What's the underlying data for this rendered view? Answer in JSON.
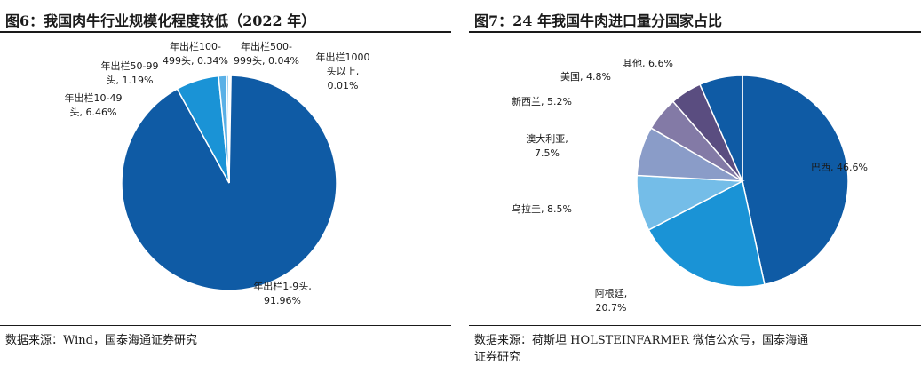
{
  "left": {
    "title": "图6：我国肉牛行业规模化程度较低（2022 年）",
    "source": "数据来源：Wind，国泰海通证券研究",
    "chart_data": {
      "type": "pie",
      "colors": [
        "#0f5ba5",
        "#1a93d6",
        "#5ab0e6",
        "#8cc8ee",
        "#c5def3"
      ],
      "slices": [
        {
          "label_lines": [
            "年出栏1-9头,",
            "91.96%"
          ],
          "value": 91.96
        },
        {
          "label_lines": [
            "年出栏10-49",
            "头, 6.46%"
          ],
          "value": 6.46
        },
        {
          "label_lines": [
            "年出栏50-99",
            "头, 1.19%"
          ],
          "value": 1.19
        },
        {
          "label_lines": [
            "年出栏100-",
            "499头, 0.34%"
          ],
          "value": 0.34
        },
        {
          "label_lines": [
            "年出栏500-",
            "999头, 0.04%"
          ],
          "value": 0.04
        },
        {
          "label_lines": [
            "年出栏1000",
            "头以上,",
            "0.01%"
          ],
          "value": 0.01
        }
      ]
    }
  },
  "right": {
    "title": "图7：24 年我国牛肉进口量分国家占比",
    "source_lines": [
      "数据来源：荷斯坦 HOLSTEINFARMER 微信公众号，国泰海通",
      "证券研究"
    ],
    "chart_data": {
      "type": "pie",
      "colors": [
        "#0f5ba5",
        "#1a93d6",
        "#74bde8",
        "#8a9cc8",
        "#837aa6",
        "#5a4d80",
        "#0f5ba5"
      ],
      "slices": [
        {
          "label_lines": [
            "巴西, 46.6%"
          ],
          "value": 46.6
        },
        {
          "label_lines": [
            "阿根廷,",
            "20.7%"
          ],
          "value": 20.7
        },
        {
          "label_lines": [
            "乌拉圭, 8.5%"
          ],
          "value": 8.5
        },
        {
          "label_lines": [
            "澳大利亚,",
            "7.5%"
          ],
          "value": 7.5
        },
        {
          "label_lines": [
            "新西兰, 5.2%"
          ],
          "value": 5.2
        },
        {
          "label_lines": [
            "美国, 4.8%"
          ],
          "value": 4.8
        },
        {
          "label_lines": [
            "其他, 6.6%"
          ],
          "value": 6.6
        }
      ]
    }
  }
}
